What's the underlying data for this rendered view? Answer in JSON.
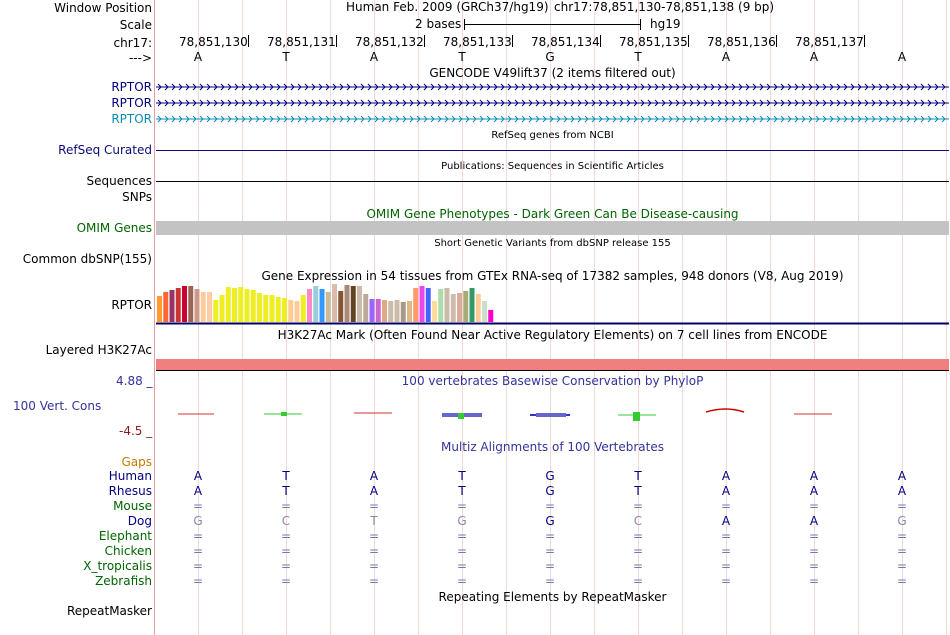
{
  "header": {
    "window_position_label": "Window Position",
    "scale_label": "Scale",
    "chr_label": "chr17:",
    "arrow_label": "--->",
    "assembly": "Human Feb. 2009 (GRCh37/hg19)",
    "position": "chr17:78,851,130-78,851,138 (9 bp)",
    "scale_text": "2 bases",
    "db": "hg19",
    "coordinates": [
      "78,851,130",
      "78,851,131",
      "78,851,132",
      "78,851,133",
      "78,851,134",
      "78,851,135",
      "78,851,136",
      "78,851,137"
    ],
    "sequence": [
      "A",
      "T",
      "A",
      "T",
      "G",
      "T",
      "A",
      "A",
      "A"
    ]
  },
  "tracks": {
    "gencode_title": "GENCODE V49lift37 (2 items filtered out)",
    "gencode_items": [
      "RPTOR",
      "RPTOR",
      "RPTOR"
    ],
    "refseq_title": "RefSeq genes from NCBI",
    "refseq_label": "RefSeq Curated",
    "pubs_title": "Publications: Sequences in Scientific Articles",
    "pubs_label1": "Sequences",
    "pubs_label2": "SNPs",
    "omim_title": "OMIM Gene Phenotypes - Dark Green Can Be Disease-causing",
    "omim_label": "OMIM Genes",
    "dbsnp_title": "Short Genetic Variants from dbSNP release 155",
    "dbsnp_label": "Common dbSNP(155)",
    "gtex_title": "Gene Expression in 54 tissues from GTEx RNA-seq of 17382 samples, 948 donors (V8, Aug 2019)",
    "gtex_label": "RPTOR",
    "h3k27_title": "H3K27Ac Mark (Often Found Near Active Regulatory Elements) on 7 cell lines from ENCODE",
    "h3k27_label": "Layered H3K27Ac",
    "cons_title": "100 vertebrates Basewise Conservation by PhyloP",
    "cons_label": "100 Vert. Cons",
    "cons_max": "4.88 _",
    "cons_min": "-4.5 _",
    "multiz_title": "Multiz Alignments of 100 Vertebrates",
    "rmsk_title": "Repeating Elements by RepeatMasker",
    "rmsk_label": "RepeatMasker"
  },
  "multiz": {
    "gaps_label": "Gaps",
    "species": [
      {
        "name": "Human",
        "bases": [
          "A",
          "T",
          "A",
          "T",
          "G",
          "T",
          "A",
          "A",
          "A"
        ]
      },
      {
        "name": "Rhesus",
        "bases": [
          "A",
          "T",
          "A",
          "T",
          "G",
          "T",
          "A",
          "A",
          "A"
        ]
      },
      {
        "name": "Mouse",
        "bases": [
          "=",
          "=",
          "=",
          "=",
          "=",
          "=",
          "=",
          "=",
          "="
        ]
      },
      {
        "name": "Dog",
        "bases": [
          "G",
          "C",
          "T",
          "G",
          "G",
          "C",
          "A",
          "A",
          "G"
        ]
      },
      {
        "name": "Elephant",
        "bases": [
          "=",
          "=",
          "=",
          "=",
          "=",
          "=",
          "=",
          "=",
          "="
        ]
      },
      {
        "name": "Chicken",
        "bases": [
          "=",
          "=",
          "=",
          "=",
          "=",
          "=",
          "=",
          "=",
          "="
        ]
      },
      {
        "name": "X_tropicalis",
        "bases": [
          "=",
          "=",
          "=",
          "=",
          "=",
          "=",
          "=",
          "=",
          "="
        ]
      },
      {
        "name": "Zebrafish",
        "bases": [
          "=",
          "=",
          "=",
          "=",
          "=",
          "=",
          "=",
          "=",
          "="
        ]
      }
    ]
  },
  "chart_data": {
    "type": "bar",
    "title": "Gene Expression in 54 tissues from GTEx RNA-seq of 17382 samples, 948 donors (V8, Aug 2019)",
    "values": [
      26,
      30,
      32,
      34,
      36,
      36,
      33,
      30,
      30,
      22,
      27,
      35,
      34,
      35,
      33,
      32,
      29,
      27,
      27,
      25,
      24,
      22,
      21,
      27,
      33,
      36,
      33,
      30,
      38,
      31,
      37,
      36,
      36,
      28,
      23,
      23,
      22,
      21,
      22,
      20,
      21,
      34,
      36,
      34,
      21,
      33,
      34,
      28,
      29,
      31,
      34,
      28,
      21,
      12
    ],
    "colors": [
      "#ff9933",
      "#ff6633",
      "#993366",
      "#cc3333",
      "#cc0033",
      "#996655",
      "#cc9988",
      "#ffcc99",
      "#ffccaa",
      "#eeee22",
      "#eeee22",
      "#eeee22",
      "#eeee22",
      "#eeee22",
      "#eeee22",
      "#eeee22",
      "#eeee22",
      "#eeee22",
      "#eeee22",
      "#eeee22",
      "#eeee22",
      "#ffcc99",
      "#ffcc99",
      "#eeee22",
      "#ff88cc",
      "#99ccdd",
      "#3399ff",
      "#ccbb99",
      "#ddbbaa",
      "#885533",
      "#aa8877",
      "#664422",
      "#ccbbaa",
      "#bbaa99",
      "#9966ff",
      "#cc66cc",
      "#ddaa88",
      "#ccbbaa",
      "#ccbbaa",
      "#aa9988",
      "#ddbb88",
      "#ff9966",
      "#ee44ee",
      "#4466ff",
      "#ffdd99",
      "#aaddaa",
      "#ccbbaa",
      "#ccbbaa",
      "#ddaa99",
      "#aaaa77",
      "#339966",
      "#ffcc99",
      "#ccddcc",
      "#ff00cc"
    ]
  }
}
